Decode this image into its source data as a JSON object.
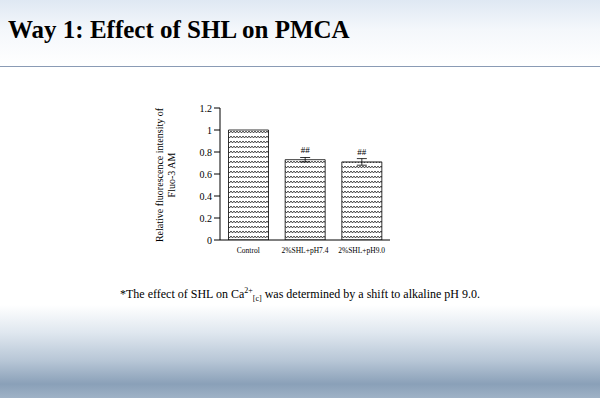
{
  "title": "Way 1: Effect of SHL on PMCA",
  "footnote": {
    "text_before": "*The effect of SHL on Ca",
    "superscript": "2+",
    "subscript": "[c]",
    "text_after": " was determined by a shift to alkaline pH 9.0."
  },
  "chart_data": {
    "type": "bar",
    "y_label": "Relative fluorescence intensity of Fluo-3 AM",
    "categories": [
      "Control",
      "2%SHL+pH7.4",
      "2%SHL+pH9.0"
    ],
    "values": [
      1,
      0.73,
      0.71
    ],
    "errors": [
      0,
      0.02,
      0.03
    ],
    "annotations": [
      null,
      "##",
      "##"
    ],
    "color": "#000000",
    "ylim": [
      0,
      1.2
    ],
    "yticks": [
      0,
      0.2,
      0.4,
      0.6,
      0.8,
      1,
      1.2
    ],
    "grid": false
  }
}
